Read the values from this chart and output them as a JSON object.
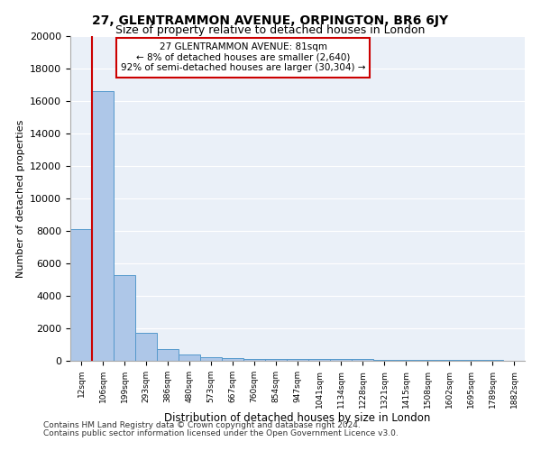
{
  "title": "27, GLENTRAMMON AVENUE, ORPINGTON, BR6 6JY",
  "subtitle": "Size of property relative to detached houses in London",
  "xlabel": "Distribution of detached houses by size in London",
  "ylabel": "Number of detached properties",
  "bar_values": [
    8100,
    16600,
    5300,
    1750,
    700,
    380,
    250,
    150,
    130,
    130,
    120,
    110,
    100,
    90,
    80,
    70,
    60,
    50,
    40,
    30,
    20
  ],
  "bar_labels": [
    "12sqm",
    "106sqm",
    "199sqm",
    "293sqm",
    "386sqm",
    "480sqm",
    "573sqm",
    "667sqm",
    "760sqm",
    "854sqm",
    "947sqm",
    "1041sqm",
    "1134sqm",
    "1228sqm",
    "1321sqm",
    "1415sqm",
    "1508sqm",
    "1602sqm",
    "1695sqm",
    "1789sqm",
    "1882sqm"
  ],
  "bar_color": "#aec7e8",
  "bar_edge_color": "#5599cc",
  "property_line_x": 1.0,
  "annotation_title": "27 GLENTRAMMON AVENUE: 81sqm",
  "annotation_line1": "← 8% of detached houses are smaller (2,640)",
  "annotation_line2": "92% of semi-detached houses are larger (30,304) →",
  "annotation_box_color": "#cc0000",
  "ylim": [
    0,
    20000
  ],
  "yticks": [
    0,
    2000,
    4000,
    6000,
    8000,
    10000,
    12000,
    14000,
    16000,
    18000,
    20000
  ],
  "footer_line1": "Contains HM Land Registry data © Crown copyright and database right 2024.",
  "footer_line2": "Contains public sector information licensed under the Open Government Licence v3.0.",
  "background_color": "#eaf0f8",
  "grid_color": "#ffffff"
}
